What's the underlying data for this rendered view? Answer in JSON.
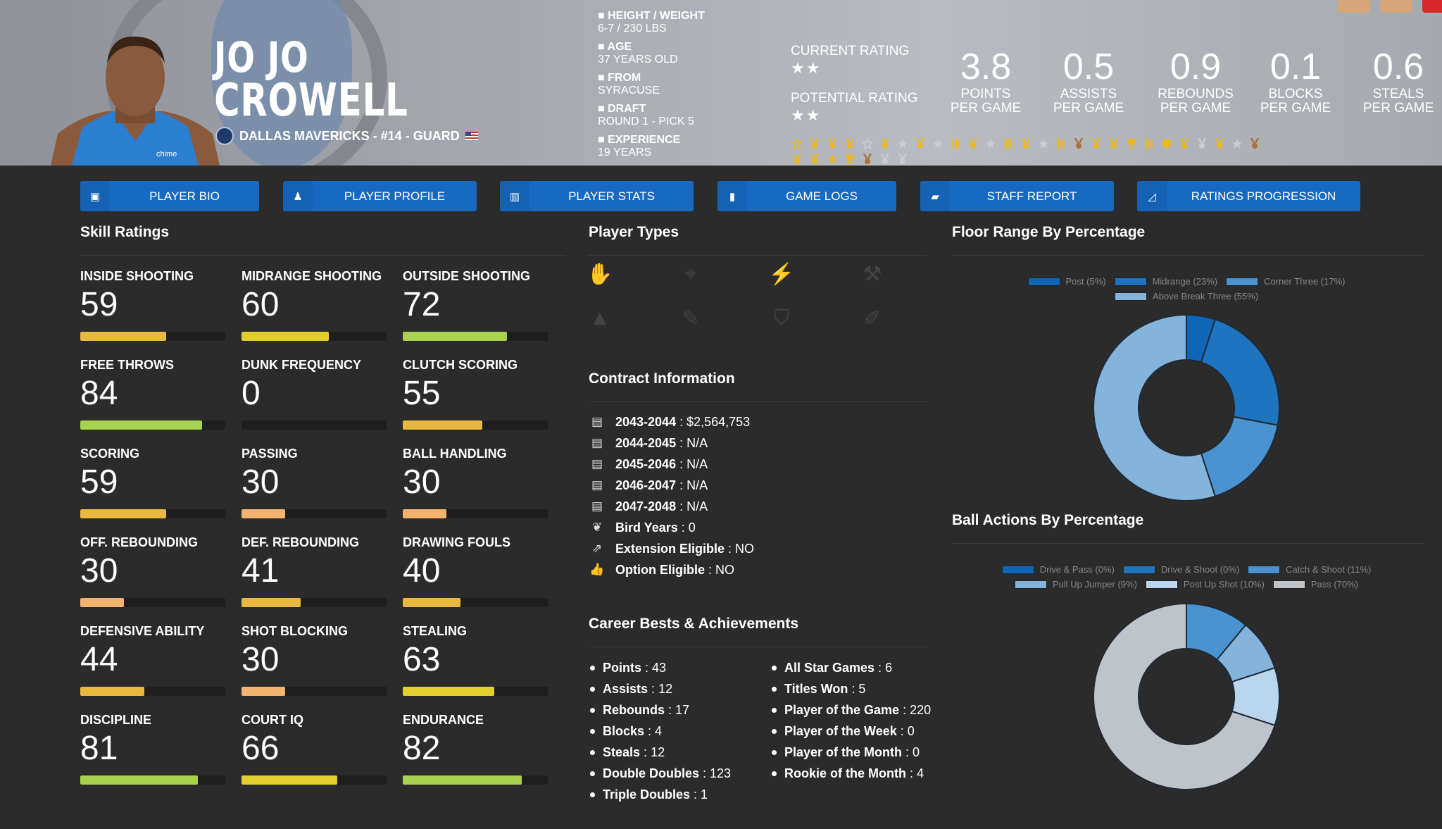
{
  "player": {
    "first": "JO JO",
    "last": "CROWELL",
    "team_line": "DALLAS MAVERICKS - #14 - GUARD"
  },
  "info": [
    {
      "icon": "ruler-icon",
      "label": "HEIGHT / WEIGHT",
      "value": "6-7 / 230 LBS"
    },
    {
      "icon": "cake-icon",
      "label": "AGE",
      "value": "37 YEARS OLD"
    },
    {
      "icon": "school-icon",
      "label": "FROM",
      "value": "SYRACUSE"
    },
    {
      "icon": "hash-icon",
      "label": "DRAFT",
      "value": "ROUND 1 - PICK 5"
    },
    {
      "icon": "user-clock-icon",
      "label": "EXPERIENCE",
      "value": "19 YEARS"
    }
  ],
  "ratings": {
    "current_label": "CURRENT RATING",
    "current_stars": "★★",
    "potential_label": "POTENTIAL RATING",
    "potential_stars": "★★",
    "current_value": 2,
    "potential_value": 2
  },
  "stats": [
    {
      "num": "3.8",
      "l1": "POINTS",
      "l2": "PER GAME"
    },
    {
      "num": "0.5",
      "l1": "ASSISTS",
      "l2": "PER GAME"
    },
    {
      "num": "0.9",
      "l1": "REBOUNDS",
      "l2": "PER GAME"
    },
    {
      "num": "0.1",
      "l1": "BLOCKS",
      "l2": "PER GAME"
    },
    {
      "num": "0.6",
      "l1": "STEALS",
      "l2": "PER GAME"
    }
  ],
  "awards_row1": [
    "star-outline:gold",
    "medal:gold",
    "medal:gold",
    "medal:gold",
    "star-outline:gray",
    "medal:gold",
    "star:gray",
    "medal:gold",
    "star:gray",
    "bars:gold",
    "medal:gold",
    "star:gray",
    "bars:gold",
    "medal:gold",
    "star:gray",
    "bars:gold",
    "medal:bronze",
    "medal:gold",
    "medal:gold",
    "trophy:gold",
    "bars:gold",
    "shield:gold",
    "medal:gold",
    "medal:silver",
    "medal:gold",
    "star:silver",
    "medal:bronze"
  ],
  "awards_row2": [
    "medal:gold",
    "medal:gold",
    "star:gold",
    "trophy:gold",
    "medal:bronze",
    "medal:silver",
    "medal:silver"
  ],
  "award_colors": {
    "gold": "#e9b824",
    "gray": "#c9ccd0",
    "silver": "#c9ccd0",
    "bronze": "#a8703a"
  },
  "nav": [
    {
      "icon": "id-card-icon",
      "glyph": "▣",
      "label": "PLAYER BIO"
    },
    {
      "icon": "reader-icon",
      "glyph": "♟",
      "label": "PLAYER PROFILE"
    },
    {
      "icon": "bar-chart-icon",
      "glyph": "▥",
      "label": "PLAYER STATS"
    },
    {
      "icon": "clipboard-icon",
      "glyph": "▮",
      "label": "GAME LOGS"
    },
    {
      "icon": "comment-icon",
      "glyph": "▰",
      "label": "STAFF REPORT"
    },
    {
      "icon": "line-chart-icon",
      "glyph": "◿",
      "label": "RATINGS PROGRESSION"
    }
  ],
  "skills_title": "Skill Ratings",
  "skills": [
    {
      "label": "INSIDE SHOOTING",
      "value": "59"
    },
    {
      "label": "MIDRANGE SHOOTING",
      "value": "60"
    },
    {
      "label": "OUTSIDE SHOOTING",
      "value": "72"
    },
    {
      "label": "FREE THROWS",
      "value": "84"
    },
    {
      "label": "DUNK FREQUENCY",
      "value": "0"
    },
    {
      "label": "CLUTCH SCORING",
      "value": "55"
    },
    {
      "label": "SCORING",
      "value": "59"
    },
    {
      "label": "PASSING",
      "value": "30"
    },
    {
      "label": "BALL HANDLING",
      "value": "30"
    },
    {
      "label": "OFF. REBOUNDING",
      "value": "30"
    },
    {
      "label": "DEF. REBOUNDING",
      "value": "41"
    },
    {
      "label": "DRAWING FOULS",
      "value": "40"
    },
    {
      "label": "DEFENSIVE ABILITY",
      "value": "44"
    },
    {
      "label": "SHOT BLOCKING",
      "value": "30"
    },
    {
      "label": "STEALING",
      "value": "63"
    },
    {
      "label": "DISCIPLINE",
      "value": "81"
    },
    {
      "label": "COURT IQ",
      "value": "66"
    },
    {
      "label": "ENDURANCE",
      "value": "82"
    }
  ],
  "skill_colors": {
    "low": "#f2b36e",
    "mid": "#e8b93e",
    "high": "#e0cf2c",
    "top": "#a9d24f"
  },
  "player_types_title": "Player Types",
  "player_types": [
    {
      "icon": "basketball-hand-icon",
      "glyph": "✋"
    },
    {
      "icon": "crosshair-icon",
      "glyph": "⌖"
    },
    {
      "icon": "bolt-icon",
      "glyph": "⚡"
    },
    {
      "icon": "hammer-icon",
      "glyph": "⚒"
    },
    {
      "icon": "cone-icon",
      "glyph": "▲"
    },
    {
      "icon": "magic-wand-icon",
      "glyph": "✎"
    },
    {
      "icon": "shield-icon",
      "glyph": "⛉"
    },
    {
      "icon": "broom-icon",
      "glyph": "✐"
    }
  ],
  "contract_title": "Contract Information",
  "contract": [
    {
      "icon": "money-icon",
      "glyph": "▤",
      "label": "2043-2044",
      "value": "$2,564,753"
    },
    {
      "icon": "money-icon",
      "glyph": "▤",
      "label": "2044-2045",
      "value": "N/A"
    },
    {
      "icon": "money-icon",
      "glyph": "▤",
      "label": "2045-2046",
      "value": "N/A"
    },
    {
      "icon": "money-icon",
      "glyph": "▤",
      "label": "2046-2047",
      "value": "N/A"
    },
    {
      "icon": "money-icon",
      "glyph": "▤",
      "label": "2047-2048",
      "value": "N/A"
    },
    {
      "icon": "feather-icon",
      "glyph": "❦",
      "label": "Bird Years",
      "value": "0"
    },
    {
      "icon": "external-link-icon",
      "glyph": "⇗",
      "label": "Extension Eligible",
      "value": "NO"
    },
    {
      "icon": "thumbs-up-icon",
      "glyph": "👍",
      "label": "Option Eligible",
      "value": "NO"
    }
  ],
  "career_title": "Career Bests & Achievements",
  "career_left": [
    {
      "label": "Points",
      "value": "43"
    },
    {
      "label": "Assists",
      "value": "12"
    },
    {
      "label": "Rebounds",
      "value": "17"
    },
    {
      "label": "Blocks",
      "value": "4"
    },
    {
      "label": "Steals",
      "value": "12"
    },
    {
      "label": "Double Doubles",
      "value": "123"
    },
    {
      "label": "Triple Doubles",
      "value": "1"
    }
  ],
  "career_right": [
    {
      "label": "All Star Games",
      "value": "6"
    },
    {
      "label": "Titles Won",
      "value": "5"
    },
    {
      "label": "Player of the Game",
      "value": "220"
    },
    {
      "label": "Player of the Week",
      "value": "0"
    },
    {
      "label": "Player of the Month",
      "value": "0"
    },
    {
      "label": "Rookie of the Month",
      "value": "4"
    }
  ],
  "chart_data": [
    {
      "type": "pie",
      "title": "Floor Range By Percentage",
      "donut": true,
      "legend": "top",
      "categories": [
        "Post (5%)",
        "Midrange (23%)",
        "Corner Three (17%)",
        "Above Break Three (55%)"
      ],
      "values": [
        5,
        23,
        17,
        55
      ],
      "colors": [
        "#0f66b8",
        "#1f74c0",
        "#4a93d0",
        "#84b4dc"
      ]
    },
    {
      "type": "pie",
      "title": "Ball Actions By Percentage",
      "donut": true,
      "legend": "top",
      "categories": [
        "Drive & Pass (0%)",
        "Drive & Shoot (0%)",
        "Catch & Shoot (11%)",
        "Pull Up Jumper (9%)",
        "Post Up Shot (10%)",
        "Pass (70%)"
      ],
      "values": [
        0,
        0,
        11,
        9,
        10,
        70
      ],
      "colors": [
        "#0f66b8",
        "#1f74c0",
        "#4a93d0",
        "#84b4dc",
        "#b9d6ee",
        "#bfc3ca"
      ]
    }
  ]
}
